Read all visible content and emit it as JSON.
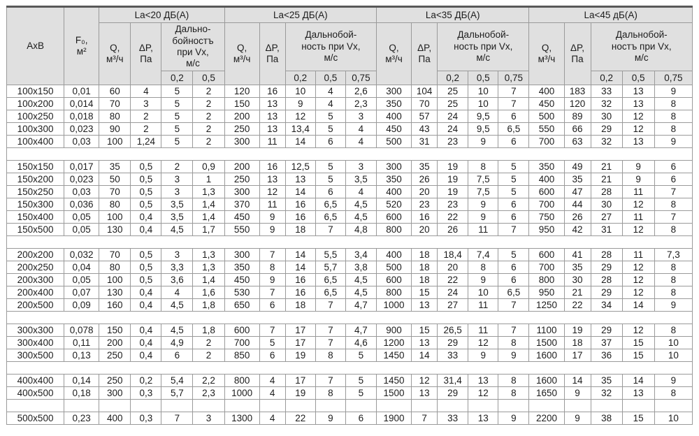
{
  "chart_data": {
    "type": "table",
    "title": "",
    "corner": {
      "axb": "AxB",
      "f0": "F₀,\nм²"
    },
    "groups": [
      {
        "label": "La<20 ДБ(А)",
        "q": "Q,\nм³/ч",
        "dp": "ΔP,\nПа",
        "range": "Дально-\nбойностъ\nпри Vx,\nм/с",
        "speeds": [
          "0,2",
          "0,5"
        ]
      },
      {
        "label": "La<25 ДБ(А)",
        "q": "Q,\nм³/ч",
        "dp": "ΔP,\nПа",
        "range": "Дальнобой-\nность при Vx,\nм/с",
        "speeds": [
          "0,2",
          "0,5",
          "0,75"
        ]
      },
      {
        "label": "La<35 ДБ(А)",
        "q": "Q,\nм³/ч",
        "dp": "ΔP,\nПа",
        "range": "Дальнобой-\nность при Vx,\nм/с",
        "speeds": [
          "0,2",
          "0,5",
          "0,75"
        ]
      },
      {
        "label": "La<45 дБ(А)",
        "q": "Q,\nм³/ч",
        "dp": "ΔP,\nПа",
        "range": "Дальнобой-\nностъ при Vx,\nм/с",
        "speeds": [
          "0,2",
          "0,5",
          "0,75"
        ]
      }
    ],
    "rows": [
      {
        "cells": [
          "100x150",
          "0,01",
          "60",
          "4",
          "5",
          "2",
          "120",
          "16",
          "10",
          "4",
          "2,6",
          "300",
          "104",
          "25",
          "10",
          "7",
          "400",
          "183",
          "33",
          "13",
          "9"
        ]
      },
      {
        "cells": [
          "100x200",
          "0,014",
          "70",
          "3",
          "5",
          "2",
          "150",
          "13",
          "9",
          "4",
          "2,3",
          "350",
          "70",
          "25",
          "10",
          "7",
          "450",
          "120",
          "32",
          "13",
          "8"
        ]
      },
      {
        "cells": [
          "100x250",
          "0,018",
          "80",
          "2",
          "5",
          "2",
          "200",
          "13",
          "12",
          "5",
          "3",
          "400",
          "57",
          "24",
          "9,5",
          "6",
          "500",
          "89",
          "30",
          "12",
          "8"
        ]
      },
      {
        "cells": [
          "100x300",
          "0,023",
          "90",
          "2",
          "5",
          "2",
          "250",
          "13",
          "13,4",
          "5",
          "4",
          "450",
          "43",
          "24",
          "9,5",
          "6,5",
          "550",
          "66",
          "29",
          "12",
          "8"
        ]
      },
      {
        "cells": [
          "100x400",
          "0,03",
          "100",
          "1,24",
          "5",
          "2",
          "300",
          "11",
          "14",
          "6",
          "4",
          "500",
          "31",
          "23",
          "9",
          "6",
          "700",
          "63",
          "32",
          "13",
          "9"
        ]
      },
      {
        "spacer": "plain"
      },
      {
        "cells": [
          "150x150",
          "0,017",
          "35",
          "0,5",
          "2",
          "0,9",
          "200",
          "16",
          "12,5",
          "5",
          "3",
          "300",
          "35",
          "19",
          "8",
          "5",
          "350",
          "49",
          "21",
          "9",
          "6"
        ]
      },
      {
        "cells": [
          "150x200",
          "0,023",
          "50",
          "0,5",
          "3",
          "1",
          "250",
          "13",
          "13",
          "5",
          "3,5",
          "350",
          "26",
          "19",
          "7,5",
          "5",
          "400",
          "35",
          "21",
          "9",
          "6"
        ]
      },
      {
        "cells": [
          "150x250",
          "0,03",
          "70",
          "0,5",
          "3",
          "1,3",
          "300",
          "12",
          "14",
          "6",
          "4",
          "400",
          "20",
          "19",
          "7,5",
          "5",
          "600",
          "47",
          "28",
          "11",
          "7"
        ]
      },
      {
        "cells": [
          "150x300",
          "0,036",
          "80",
          "0,5",
          "3,5",
          "1,4",
          "370",
          "11",
          "16",
          "6,5",
          "4,5",
          "520",
          "23",
          "23",
          "9",
          "6",
          "700",
          "44",
          "30",
          "12",
          "8"
        ]
      },
      {
        "cells": [
          "150x400",
          "0,05",
          "100",
          "0,4",
          "3,5",
          "1,4",
          "450",
          "9",
          "16",
          "6,5",
          "4,5",
          "600",
          "16",
          "22",
          "9",
          "6",
          "750",
          "26",
          "27",
          "11",
          "7"
        ]
      },
      {
        "cells": [
          "150x500",
          "0,05",
          "130",
          "0,4",
          "4,5",
          "1,7",
          "550",
          "9",
          "18",
          "7",
          "4,8",
          "800",
          "20",
          "26",
          "11",
          "7",
          "950",
          "42",
          "31",
          "12",
          "8"
        ]
      },
      {
        "spacer": "plain"
      },
      {
        "cells": [
          "200x200",
          "0,032",
          "70",
          "0,5",
          "3",
          "1,3",
          "300",
          "7",
          "14",
          "5,5",
          "3,4",
          "400",
          "18",
          "18,4",
          "7,4",
          "5",
          "600",
          "41",
          "28",
          "11",
          "7,3"
        ]
      },
      {
        "cells": [
          "200x250",
          "0,04",
          "80",
          "0,5",
          "3,3",
          "1,3",
          "350",
          "8",
          "14",
          "5,7",
          "3,8",
          "500",
          "18",
          "20",
          "8",
          "6",
          "700",
          "35",
          "29",
          "12",
          "8"
        ]
      },
      {
        "cells": [
          "200x300",
          "0,05",
          "100",
          "0,5",
          "3,6",
          "1,4",
          "450",
          "9",
          "16",
          "6,5",
          "4,5",
          "600",
          "18",
          "22",
          "9",
          "6",
          "800",
          "30",
          "28",
          "12",
          "8"
        ]
      },
      {
        "cells": [
          "200x400",
          "0,07",
          "130",
          "0,4",
          "4",
          "1,6",
          "530",
          "7",
          "16",
          "6,5",
          "4,5",
          "800",
          "15",
          "24",
          "10",
          "6,5",
          "950",
          "21",
          "29",
          "12",
          "8"
        ]
      },
      {
        "cells": [
          "200x500",
          "0,09",
          "160",
          "0,4",
          "4,5",
          "1,8",
          "650",
          "6",
          "18",
          "7",
          "4,7",
          "1000",
          "13",
          "27",
          "11",
          "7",
          "1250",
          "22",
          "34",
          "14",
          "9"
        ]
      },
      {
        "spacer": "plain"
      },
      {
        "cells": [
          "300x300",
          "0,078",
          "150",
          "0,4",
          "4,5",
          "1,8",
          "600",
          "7",
          "17",
          "7",
          "4,7",
          "900",
          "15",
          "26,5",
          "11",
          "7",
          "1100",
          "19",
          "29",
          "12",
          "8"
        ]
      },
      {
        "cells": [
          "300x400",
          "0,11",
          "200",
          "0,4",
          "4,9",
          "2",
          "700",
          "5",
          "17",
          "7",
          "4,6",
          "1200",
          "13",
          "29",
          "12",
          "8",
          "1500",
          "18",
          "37",
          "15",
          "10"
        ]
      },
      {
        "cells": [
          "300x500",
          "0,13",
          "250",
          "0,4",
          "6",
          "2",
          "850",
          "6",
          "19",
          "8",
          "5",
          "1450",
          "14",
          "33",
          "9",
          "9",
          "1600",
          "17",
          "36",
          "15",
          "10"
        ]
      },
      {
        "spacer": "plain"
      },
      {
        "cells": [
          "400x400",
          "0,14",
          "250",
          "0,2",
          "5,4",
          "2,2",
          "800",
          "4",
          "17",
          "7",
          "5",
          "1450",
          "12",
          "31,4",
          "13",
          "8",
          "1600",
          "14",
          "35",
          "14",
          "9"
        ]
      },
      {
        "cells": [
          "400x500",
          "0,18",
          "300",
          "0,3",
          "5,7",
          "2,3",
          "1000",
          "4",
          "19",
          "8",
          "5",
          "1500",
          "13",
          "29",
          "12",
          "8",
          "1650",
          "9",
          "32",
          "13",
          "8"
        ]
      },
      {
        "spacer": "grid"
      },
      {
        "cells": [
          "500x500",
          "0,23",
          "400",
          "0,3",
          "7",
          "3",
          "1300",
          "4",
          "22",
          "9",
          "6",
          "1900",
          "7",
          "33",
          "13",
          "9",
          "2200",
          "9",
          "38",
          "15",
          "10"
        ]
      }
    ]
  }
}
